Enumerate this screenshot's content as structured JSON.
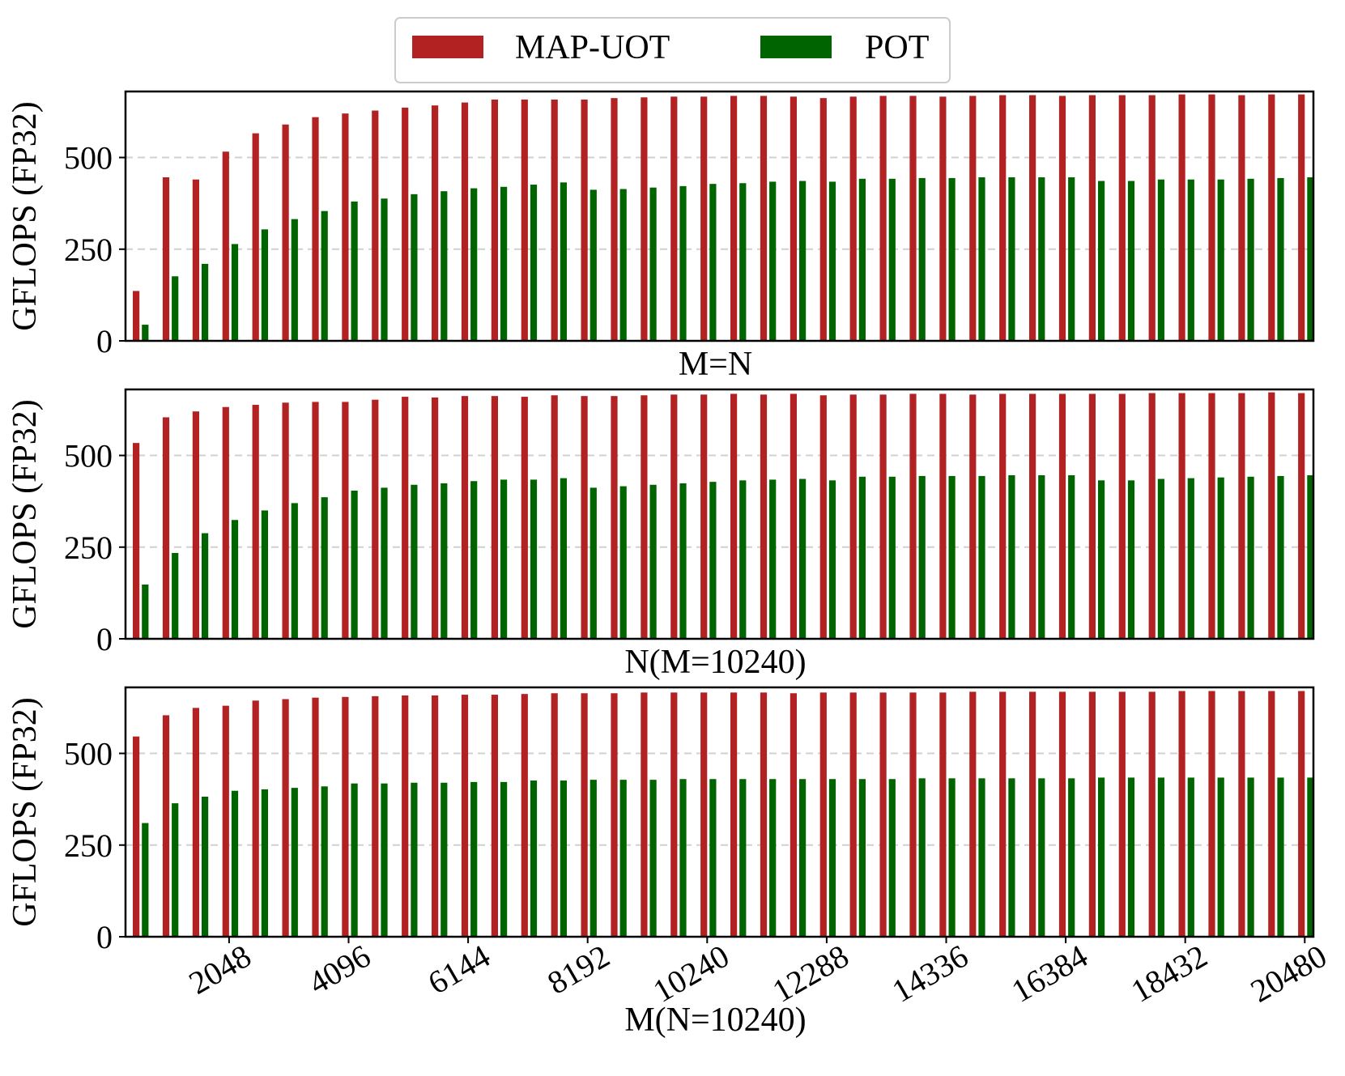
{
  "legend": {
    "items": [
      {
        "label": "MAP-UOT",
        "color": "#b22222"
      },
      {
        "label": "POT",
        "color": "#006400"
      }
    ]
  },
  "chart_data": [
    {
      "type": "bar",
      "xlabel": "M=N",
      "ylabel": "GFLOPS (FP32)",
      "ylim": [
        0,
        680
      ],
      "yticks": [
        0,
        250,
        500
      ],
      "grid": "horizontal-dashed",
      "x": [
        512,
        1024,
        1536,
        2048,
        2560,
        3072,
        3584,
        4096,
        4608,
        5120,
        5632,
        6144,
        6656,
        7168,
        7680,
        8192,
        8704,
        9216,
        9728,
        10240,
        10752,
        11264,
        11776,
        12288,
        12800,
        13312,
        13824,
        14336,
        14848,
        15360,
        15872,
        16384,
        16896,
        17408,
        17920,
        18432,
        18944,
        19456,
        19968,
        20480
      ],
      "series": [
        {
          "name": "MAP-UOT",
          "values": [
            136,
            446,
            440,
            516,
            566,
            590,
            610,
            620,
            628,
            636,
            642,
            650,
            658,
            658,
            658,
            658,
            662,
            664,
            666,
            666,
            668,
            668,
            666,
            662,
            666,
            668,
            668,
            666,
            668,
            670,
            670,
            668,
            670,
            670,
            670,
            672,
            672,
            670,
            672,
            672
          ]
        },
        {
          "name": "POT",
          "values": [
            44,
            176,
            210,
            264,
            304,
            332,
            354,
            380,
            388,
            400,
            408,
            416,
            420,
            426,
            432,
            412,
            414,
            418,
            422,
            428,
            430,
            434,
            436,
            434,
            442,
            442,
            444,
            444,
            446,
            446,
            446,
            446,
            436,
            436,
            440,
            440,
            440,
            442,
            444,
            446
          ]
        }
      ]
    },
    {
      "type": "bar",
      "xlabel": "N(M=10240)",
      "ylabel": "GFLOPS (FP32)",
      "ylim": [
        0,
        680
      ],
      "yticks": [
        0,
        250,
        500
      ],
      "grid": "horizontal-dashed",
      "x": [
        512,
        1024,
        1536,
        2048,
        2560,
        3072,
        3584,
        4096,
        4608,
        5120,
        5632,
        6144,
        6656,
        7168,
        7680,
        8192,
        8704,
        9216,
        9728,
        10240,
        10752,
        11264,
        11776,
        12288,
        12800,
        13312,
        13824,
        14336,
        14848,
        15360,
        15872,
        16384,
        16896,
        17408,
        17920,
        18432,
        18944,
        19456,
        19968,
        20480
      ],
      "series": [
        {
          "name": "MAP-UOT",
          "values": [
            534,
            604,
            620,
            632,
            638,
            644,
            646,
            646,
            652,
            660,
            658,
            662,
            662,
            660,
            664,
            662,
            662,
            664,
            666,
            666,
            668,
            666,
            668,
            664,
            666,
            666,
            668,
            668,
            666,
            668,
            668,
            668,
            668,
            668,
            670,
            670,
            670,
            670,
            672,
            670
          ]
        },
        {
          "name": "POT",
          "values": [
            148,
            234,
            288,
            324,
            350,
            370,
            386,
            404,
            412,
            420,
            424,
            430,
            434,
            434,
            438,
            412,
            416,
            420,
            424,
            428,
            432,
            434,
            436,
            432,
            442,
            442,
            444,
            444,
            444,
            446,
            446,
            446,
            432,
            432,
            436,
            438,
            440,
            442,
            444,
            446
          ]
        }
      ]
    },
    {
      "type": "bar",
      "xlabel": "M(N=10240)",
      "ylabel": "GFLOPS (FP32)",
      "ylim": [
        0,
        680
      ],
      "yticks": [
        0,
        250,
        500
      ],
      "xticks": [
        2048,
        4096,
        6144,
        8192,
        10240,
        12288,
        14336,
        16384,
        18432,
        20480
      ],
      "grid": "horizontal-dashed",
      "x": [
        512,
        1024,
        1536,
        2048,
        2560,
        3072,
        3584,
        4096,
        4608,
        5120,
        5632,
        6144,
        6656,
        7168,
        7680,
        8192,
        8704,
        9216,
        9728,
        10240,
        10752,
        11264,
        11776,
        12288,
        12800,
        13312,
        13824,
        14336,
        14848,
        15360,
        15872,
        16384,
        16896,
        17408,
        17920,
        18432,
        18944,
        19456,
        19968,
        20480
      ],
      "series": [
        {
          "name": "MAP-UOT",
          "values": [
            546,
            604,
            624,
            630,
            644,
            648,
            652,
            654,
            656,
            658,
            658,
            660,
            660,
            662,
            664,
            664,
            664,
            666,
            666,
            666,
            666,
            666,
            664,
            666,
            666,
            666,
            666,
            666,
            668,
            668,
            668,
            668,
            668,
            668,
            668,
            670,
            670,
            670,
            670,
            670
          ]
        },
        {
          "name": "POT",
          "values": [
            310,
            364,
            382,
            398,
            402,
            406,
            410,
            418,
            418,
            420,
            420,
            422,
            422,
            426,
            426,
            428,
            428,
            428,
            430,
            430,
            430,
            430,
            430,
            430,
            430,
            430,
            432,
            432,
            432,
            432,
            432,
            432,
            434,
            434,
            434,
            434,
            434,
            434,
            434,
            434
          ]
        }
      ]
    }
  ]
}
